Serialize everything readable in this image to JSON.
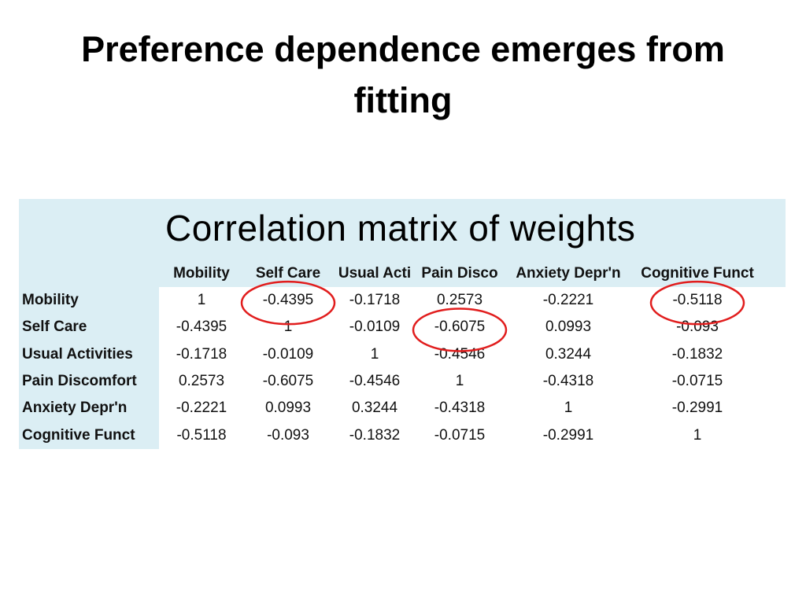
{
  "slide": {
    "title_line1": "Preference dependence emerges from",
    "title_line2": "fitting"
  },
  "table": {
    "heading": "Correlation matrix of weights",
    "columns": [
      "Mobility",
      "Self Care",
      "Usual Acti",
      "Pain Disco",
      "Anxiety Depr'n",
      "Cognitive Funct"
    ],
    "rows": [
      {
        "label": "Mobility",
        "values": [
          "1",
          "-0.4395",
          "-0.1718",
          "0.2573",
          "-0.2221",
          "-0.5118"
        ]
      },
      {
        "label": "Self Care",
        "values": [
          "-0.4395",
          "1",
          "-0.0109",
          "-0.6075",
          "0.0993",
          "-0.093"
        ]
      },
      {
        "label": "Usual Activities",
        "values": [
          "-0.1718",
          "-0.0109",
          "1",
          "-0.4546",
          "0.3244",
          "-0.1832"
        ]
      },
      {
        "label": "Pain Discomfort",
        "values": [
          "0.2573",
          "-0.6075",
          "-0.4546",
          "1",
          "-0.4318",
          "-0.0715"
        ]
      },
      {
        "label": "Anxiety Depr'n",
        "values": [
          "-0.2221",
          "0.0993",
          "0.3244",
          "-0.4318",
          "1",
          "-0.2991"
        ]
      },
      {
        "label": "Cognitive Funct",
        "values": [
          "-0.5118",
          "-0.093",
          "-0.1832",
          "-0.0715",
          "-0.2991",
          "1"
        ]
      }
    ],
    "highlighted_cells": [
      {
        "row": 0,
        "col": 1
      },
      {
        "row": 0,
        "col": 5
      },
      {
        "row": 1,
        "col": 3
      }
    ],
    "header_bg_color": "#dbeef4",
    "highlight_color": "#e11d1d"
  }
}
